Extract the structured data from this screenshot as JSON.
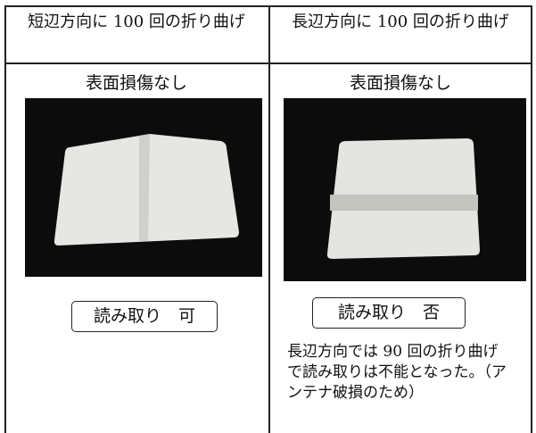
{
  "table": {
    "headers": [
      "短辺方向に 100 回の折り曲げ",
      "長辺方向に 100 回の折り曲げ"
    ],
    "surface": [
      "表面損傷なし",
      "表面損傷なし"
    ],
    "result": [
      "読み取り　可",
      "読み取り　否"
    ],
    "note": "長辺方向では 90 回の折り曲げで読み取りは不能となった。（アンテナ破損のため）"
  }
}
